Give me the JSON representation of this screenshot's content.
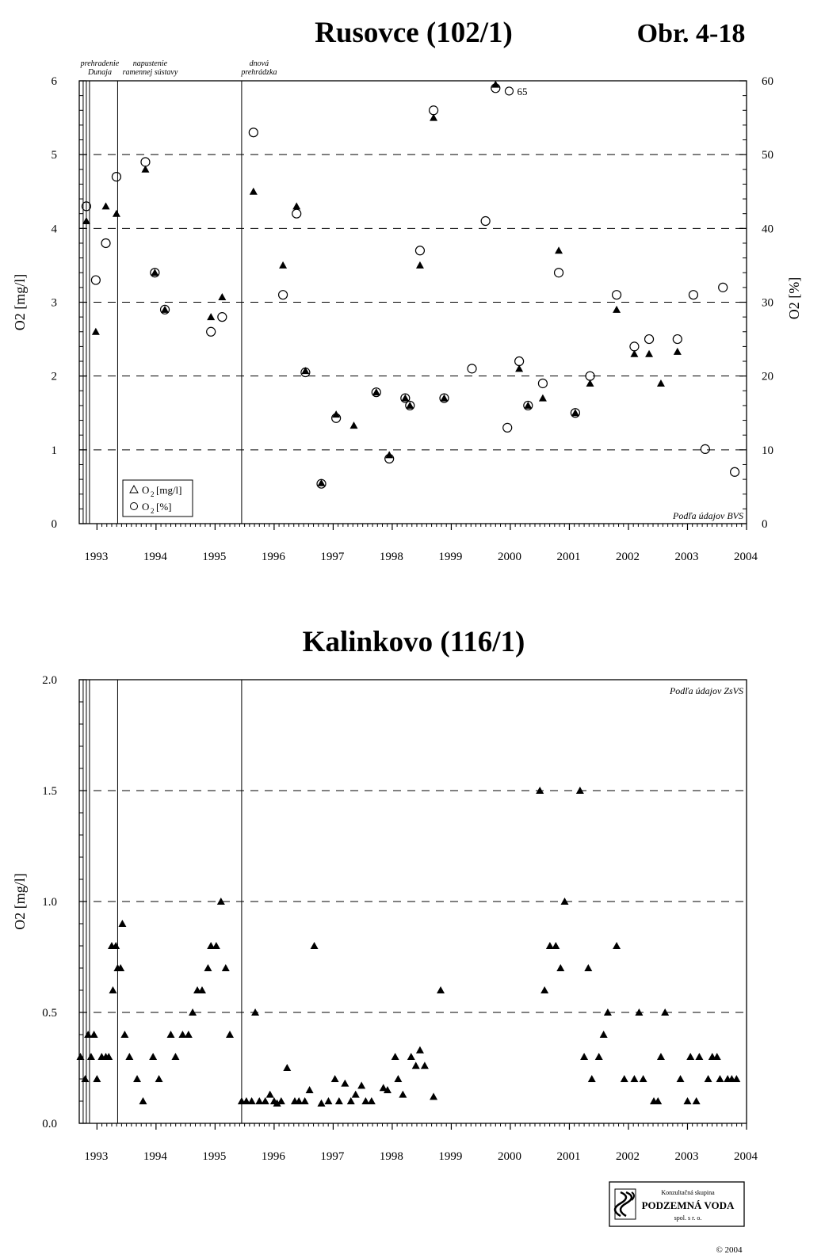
{
  "figure_label": "Obr. 4-18",
  "copyright": "© 2004",
  "logo": {
    "line1": "Konzultačná skupina",
    "line2": "PODZEMNÁ VODA",
    "line3": "spol. s r. o."
  },
  "chart_data": [
    {
      "type": "scatter",
      "title": "Rusovce (102/1)",
      "ylabel": "O2 [mg/l]",
      "y2label": "O2 [%]",
      "xlim": [
        1992.7,
        2004.0
      ],
      "ylim": [
        0,
        6
      ],
      "y2lim": [
        0,
        60
      ],
      "xticks": [
        "1993",
        "1994",
        "1995",
        "1996",
        "1997",
        "1998",
        "1999",
        "2000",
        "2001",
        "2002",
        "2003",
        "2004"
      ],
      "yticks": [
        "0",
        "1",
        "2",
        "3",
        "4",
        "5",
        "6"
      ],
      "y2ticks": [
        "0",
        "10",
        "20",
        "30",
        "40",
        "50",
        "60"
      ],
      "grid": "horizontal-dashed",
      "source_note": "Podľa údajov BVS",
      "events": [
        {
          "x": 1992.82,
          "label_lines": [
            "prehradenie",
            "Dunaja"
          ],
          "double": true
        },
        {
          "x": 1993.35,
          "label_lines": [
            "napustenie",
            "ramennej sústavy"
          ],
          "double": false
        },
        {
          "x": 1995.45,
          "label_lines": [
            "dnová",
            "prehrádzka"
          ],
          "double": false
        }
      ],
      "legend": {
        "position": "bottom-left",
        "entries": [
          "O",
          "2",
          "[mg/l]",
          "O",
          "2",
          "[%]"
        ]
      },
      "annotations": [
        {
          "text": "65",
          "x": 1999.98,
          "y": 5.85
        }
      ],
      "series": [
        {
          "name": "O2 [mg/l]",
          "marker": "filled-triangle",
          "points": [
            [
              1992.82,
              4.1
            ],
            [
              1992.98,
              2.6
            ],
            [
              1993.15,
              4.3
            ],
            [
              1993.33,
              4.2
            ],
            [
              1993.82,
              4.8
            ],
            [
              1993.98,
              3.4
            ],
            [
              1994.15,
              2.9
            ],
            [
              1994.93,
              2.8
            ],
            [
              1995.12,
              3.07
            ],
            [
              1995.65,
              4.5
            ],
            [
              1996.15,
              3.5
            ],
            [
              1996.38,
              4.3
            ],
            [
              1996.53,
              2.07
            ],
            [
              1996.8,
              0.55
            ],
            [
              1997.05,
              1.48
            ],
            [
              1997.35,
              1.33
            ],
            [
              1997.73,
              1.78
            ],
            [
              1997.95,
              0.93
            ],
            [
              1998.22,
              1.7
            ],
            [
              1998.3,
              1.6
            ],
            [
              1998.47,
              3.5
            ],
            [
              1998.7,
              5.5
            ],
            [
              1998.88,
              1.7
            ],
            [
              1999.75,
              5.95
            ],
            [
              2000.15,
              2.1
            ],
            [
              2000.3,
              1.6
            ],
            [
              2000.55,
              1.7
            ],
            [
              2000.82,
              3.7
            ],
            [
              2001.1,
              1.5
            ],
            [
              2001.35,
              1.9
            ],
            [
              2001.8,
              2.9
            ],
            [
              2002.1,
              2.3
            ],
            [
              2002.35,
              2.3
            ],
            [
              2002.55,
              1.9
            ],
            [
              2002.83,
              2.33
            ]
          ]
        },
        {
          "name": "O2 [%]",
          "marker": "open-circle",
          "axis": "right",
          "points": [
            [
              1992.82,
              43
            ],
            [
              1992.98,
              33
            ],
            [
              1993.15,
              38
            ],
            [
              1993.33,
              47
            ],
            [
              1993.82,
              49
            ],
            [
              1993.98,
              34
            ],
            [
              1994.15,
              29
            ],
            [
              1994.93,
              26
            ],
            [
              1995.12,
              28
            ],
            [
              1995.65,
              53
            ],
            [
              1996.15,
              31
            ],
            [
              1996.38,
              42
            ],
            [
              1996.53,
              20.5
            ],
            [
              1996.8,
              5.4
            ],
            [
              1997.05,
              14.3
            ],
            [
              1997.73,
              17.8
            ],
            [
              1997.95,
              8.8
            ],
            [
              1998.22,
              17
            ],
            [
              1998.3,
              16
            ],
            [
              1998.47,
              37
            ],
            [
              1998.7,
              56
            ],
            [
              1998.88,
              17
            ],
            [
              1999.35,
              21
            ],
            [
              1999.58,
              41
            ],
            [
              1999.75,
              59
            ],
            [
              1999.95,
              13
            ],
            [
              2000.15,
              22
            ],
            [
              2000.3,
              16
            ],
            [
              2000.55,
              19
            ],
            [
              2000.82,
              34
            ],
            [
              2001.1,
              15
            ],
            [
              2001.35,
              20
            ],
            [
              2001.8,
              31
            ],
            [
              2002.1,
              24
            ],
            [
              2002.35,
              25
            ],
            [
              2002.83,
              25
            ],
            [
              2003.1,
              31
            ],
            [
              2003.3,
              10.1
            ],
            [
              2003.6,
              32
            ],
            [
              2003.8,
              7
            ]
          ]
        }
      ]
    },
    {
      "type": "scatter",
      "title": "Kalinkovo (116/1)",
      "ylabel": "O2 [mg/l]",
      "xlim": [
        1992.7,
        2004.0
      ],
      "ylim": [
        0,
        2
      ],
      "xticks": [
        "1993",
        "1994",
        "1995",
        "1996",
        "1997",
        "1998",
        "1999",
        "2000",
        "2001",
        "2002",
        "2003",
        "2004"
      ],
      "yticks": [
        "0.0",
        "0.5",
        "1.0",
        "1.5",
        "2.0"
      ],
      "grid": "horizontal-dashed",
      "source_note": "Podľa údajov ZsVS",
      "events": [
        {
          "x": 1992.82,
          "double": true
        },
        {
          "x": 1993.35,
          "double": false
        },
        {
          "x": 1995.45,
          "double": false
        }
      ],
      "series": [
        {
          "name": "O2 [mg/l]",
          "marker": "filled-triangle",
          "points": [
            [
              1992.72,
              0.3
            ],
            [
              1992.8,
              0.2
            ],
            [
              1992.85,
              0.4
            ],
            [
              1992.9,
              0.3
            ],
            [
              1992.95,
              0.4
            ],
            [
              1993.0,
              0.2
            ],
            [
              1993.08,
              0.3
            ],
            [
              1993.15,
              0.3
            ],
            [
              1993.2,
              0.3
            ],
            [
              1993.25,
              0.8
            ],
            [
              1993.27,
              0.6
            ],
            [
              1993.32,
              0.8
            ],
            [
              1993.35,
              0.7
            ],
            [
              1993.4,
              0.7
            ],
            [
              1993.43,
              0.9
            ],
            [
              1993.47,
              0.4
            ],
            [
              1993.55,
              0.3
            ],
            [
              1993.68,
              0.2
            ],
            [
              1993.78,
              0.1
            ],
            [
              1993.95,
              0.3
            ],
            [
              1994.05,
              0.2
            ],
            [
              1994.25,
              0.4
            ],
            [
              1994.33,
              0.3
            ],
            [
              1994.45,
              0.4
            ],
            [
              1994.55,
              0.4
            ],
            [
              1994.62,
              0.5
            ],
            [
              1994.7,
              0.6
            ],
            [
              1994.78,
              0.6
            ],
            [
              1994.88,
              0.7
            ],
            [
              1994.93,
              0.8
            ],
            [
              1995.02,
              0.8
            ],
            [
              1995.1,
              1.0
            ],
            [
              1995.18,
              0.7
            ],
            [
              1995.25,
              0.4
            ],
            [
              1995.45,
              0.1
            ],
            [
              1995.53,
              0.1
            ],
            [
              1995.62,
              0.1
            ],
            [
              1995.68,
              0.5
            ],
            [
              1995.75,
              0.1
            ],
            [
              1995.85,
              0.1
            ],
            [
              1995.93,
              0.13
            ],
            [
              1996.0,
              0.1
            ],
            [
              1996.05,
              0.09
            ],
            [
              1996.12,
              0.1
            ],
            [
              1996.22,
              0.25
            ],
            [
              1996.35,
              0.1
            ],
            [
              1996.42,
              0.1
            ],
            [
              1996.52,
              0.1
            ],
            [
              1996.6,
              0.15
            ],
            [
              1996.68,
              0.8
            ],
            [
              1996.8,
              0.09
            ],
            [
              1996.92,
              0.1
            ],
            [
              1997.03,
              0.2
            ],
            [
              1997.1,
              0.1
            ],
            [
              1997.2,
              0.18
            ],
            [
              1997.3,
              0.1
            ],
            [
              1997.38,
              0.13
            ],
            [
              1997.48,
              0.17
            ],
            [
              1997.55,
              0.1
            ],
            [
              1997.65,
              0.1
            ],
            [
              1997.85,
              0.16
            ],
            [
              1997.92,
              0.15
            ],
            [
              1998.05,
              0.3
            ],
            [
              1998.1,
              0.2
            ],
            [
              1998.18,
              0.13
            ],
            [
              1998.32,
              0.3
            ],
            [
              1998.4,
              0.26
            ],
            [
              1998.47,
              0.33
            ],
            [
              1998.55,
              0.26
            ],
            [
              1998.7,
              0.12
            ],
            [
              1998.82,
              0.6
            ],
            [
              2000.5,
              1.5
            ],
            [
              2000.58,
              0.6
            ],
            [
              2000.67,
              0.8
            ],
            [
              2000.77,
              0.8
            ],
            [
              2000.85,
              0.7
            ],
            [
              2000.92,
              1.0
            ],
            [
              2001.18,
              1.5
            ],
            [
              2001.25,
              0.3
            ],
            [
              2001.32,
              0.7
            ],
            [
              2001.38,
              0.2
            ],
            [
              2001.5,
              0.3
            ],
            [
              2001.58,
              0.4
            ],
            [
              2001.65,
              0.5
            ],
            [
              2001.8,
              0.8
            ],
            [
              2001.93,
              0.2
            ],
            [
              2002.1,
              0.2
            ],
            [
              2002.18,
              0.5
            ],
            [
              2002.25,
              0.2
            ],
            [
              2002.43,
              0.1
            ],
            [
              2002.5,
              0.1
            ],
            [
              2002.55,
              0.3
            ],
            [
              2002.62,
              0.5
            ],
            [
              2002.88,
              0.2
            ],
            [
              2003.0,
              0.1
            ],
            [
              2003.05,
              0.3
            ],
            [
              2003.15,
              0.1
            ],
            [
              2003.2,
              0.3
            ],
            [
              2003.35,
              0.2
            ],
            [
              2003.42,
              0.3
            ],
            [
              2003.5,
              0.3
            ],
            [
              2003.55,
              0.2
            ],
            [
              2003.68,
              0.2
            ],
            [
              2003.75,
              0.2
            ],
            [
              2003.83,
              0.2
            ]
          ]
        }
      ]
    }
  ]
}
